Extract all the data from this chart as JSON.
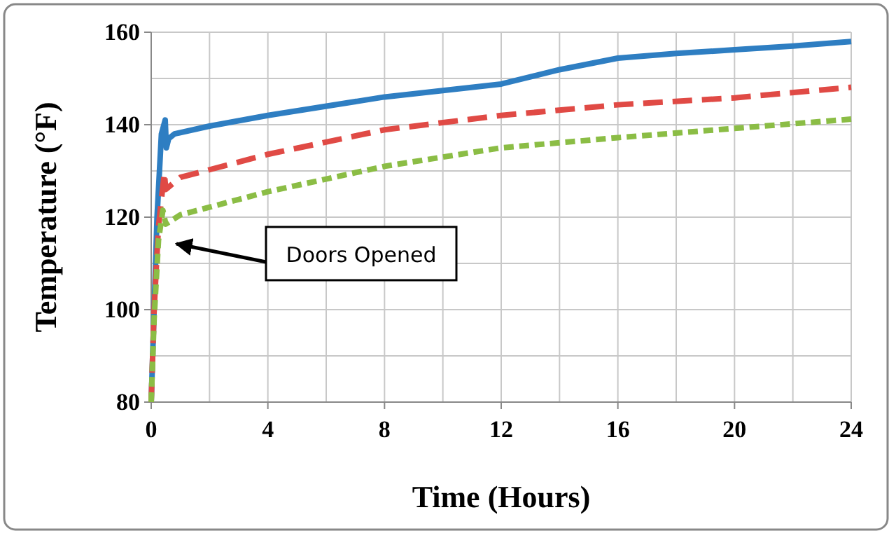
{
  "chart_data": {
    "type": "line",
    "xlabel": "Time (Hours)",
    "ylabel": "Temperature (°F)",
    "xlim": [
      0,
      24
    ],
    "ylim": [
      80,
      160
    ],
    "xticks": [
      0,
      {
        "value": 2,
        "label": null
      },
      4,
      {
        "value": 6,
        "label": null
      },
      8,
      {
        "value": 10,
        "label": null
      },
      12,
      {
        "value": 14,
        "label": null
      },
      16,
      {
        "value": 18,
        "label": null
      },
      20,
      {
        "value": 22,
        "label": null
      },
      24
    ],
    "yticks": [
      80,
      {
        "value": 90,
        "label": null
      },
      100,
      {
        "value": 110,
        "label": null
      },
      120,
      {
        "value": 130,
        "label": null
      },
      140,
      {
        "value": 150,
        "label": null
      },
      160
    ],
    "grid": true,
    "legend": false,
    "marker": "none",
    "annotations": [
      "Doors Opened"
    ],
    "series": [
      {
        "color": "#2e7ec2",
        "line_style": "solid",
        "x": [
          0,
          0.05,
          0.2,
          0.35,
          0.48,
          0.52,
          0.6,
          0.8,
          2,
          4,
          8,
          12,
          14,
          16,
          18,
          20,
          22,
          24
        ],
        "values": [
          80,
          90,
          120,
          138,
          141,
          135,
          137,
          138,
          139.7,
          142,
          146,
          148.8,
          151.9,
          154.4,
          155.4,
          156.2,
          157,
          158
        ]
      },
      {
        "color": "#e04a45",
        "line_style": "dashed",
        "x": [
          0,
          0.1,
          0.25,
          0.45,
          0.5,
          1,
          4,
          8,
          12,
          16,
          20,
          24
        ],
        "values": [
          80,
          100,
          118,
          129.6,
          126,
          128.6,
          133.6,
          138.9,
          142,
          144.3,
          145.8,
          148.1
        ]
      },
      {
        "color": "#8bbd45",
        "line_style": "dotted",
        "x": [
          0,
          0.1,
          0.25,
          0.4,
          0.5,
          1,
          4,
          8,
          12,
          16,
          20,
          24
        ],
        "values": [
          80,
          98,
          115,
          121.5,
          118.5,
          120.5,
          125.5,
          131,
          135,
          137.2,
          139.2,
          141.2
        ]
      }
    ]
  }
}
